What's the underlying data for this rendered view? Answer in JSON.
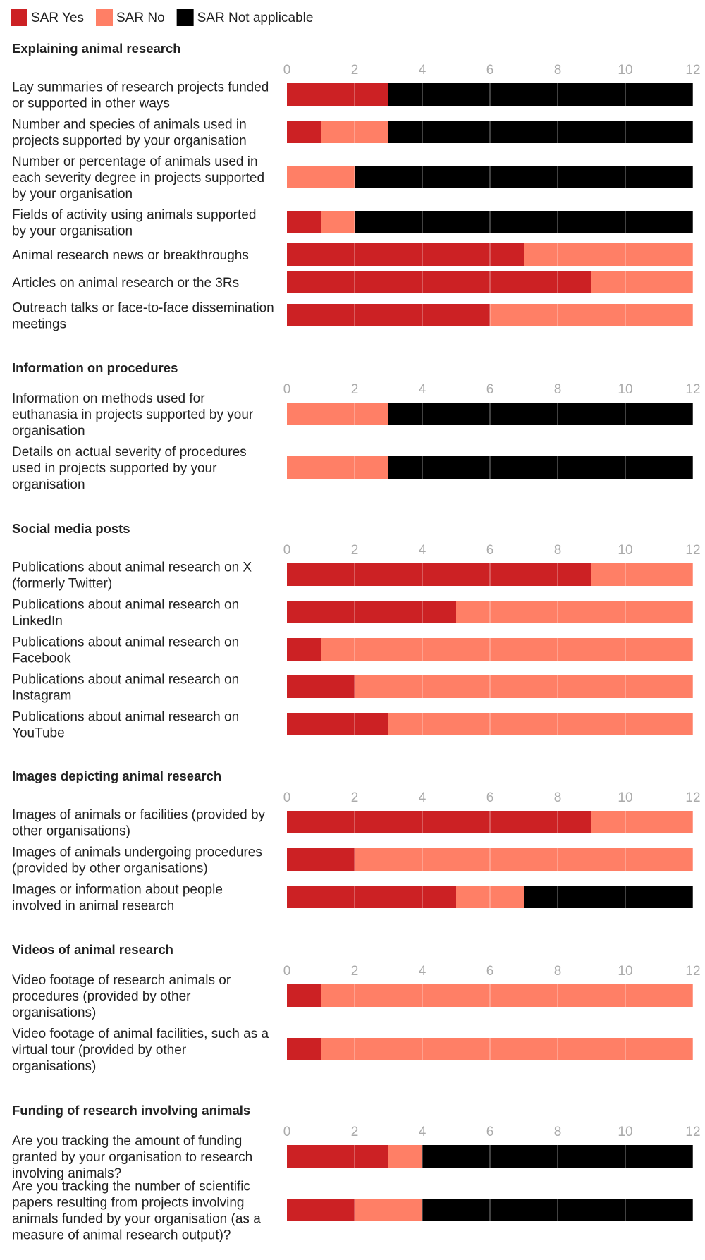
{
  "legend": [
    {
      "label": "SAR Yes",
      "color": "#cc2124"
    },
    {
      "label": "SAR No",
      "color": "#ff7f66"
    },
    {
      "label": "SAR Not applicable",
      "color": "#000000"
    }
  ],
  "chart_data": {
    "type": "bar",
    "orientation": "horizontal",
    "stacked": true,
    "xlim": [
      0,
      12
    ],
    "xticks": [
      "0",
      "2",
      "4",
      "6",
      "8",
      "10",
      "12"
    ],
    "grid": true,
    "legend_position": "top-left",
    "series_names": [
      "SAR Yes",
      "SAR No",
      "SAR Not applicable"
    ],
    "sections": [
      {
        "title": "Explaining animal research",
        "rows": [
          {
            "label": "Lay summaries of research projects funded or supported in other ways",
            "values": [
              3,
              0,
              9
            ]
          },
          {
            "label": "Number and species of animals used in projects supported by your organisation",
            "values": [
              1,
              2,
              9
            ]
          },
          {
            "label": "Number or percentage of animals used in each severity degree in projects supported by your organisation",
            "values": [
              0,
              2,
              10
            ]
          },
          {
            "label": "Fields of activity using animals supported by your organisation",
            "values": [
              1,
              1,
              10
            ]
          },
          {
            "label": "Animal research news or breakthroughs",
            "values": [
              7,
              5,
              0
            ]
          },
          {
            "label": "Articles on animal research or the 3Rs",
            "values": [
              9,
              3,
              0
            ]
          },
          {
            "label": "Outreach talks or face-to-face dissemination meetings",
            "values": [
              6,
              6,
              0
            ]
          }
        ]
      },
      {
        "title": "Information on procedures",
        "rows": [
          {
            "label": "Information on methods used for euthanasia in projects supported by your organisation",
            "values": [
              0,
              3,
              9
            ]
          },
          {
            "label": "Details on actual severity of procedures used in projects supported by your organisation",
            "values": [
              0,
              3,
              9
            ]
          }
        ]
      },
      {
        "title": "Social media posts",
        "rows": [
          {
            "label": "Publications about animal research on X (formerly Twitter)",
            "values": [
              9,
              3,
              0
            ]
          },
          {
            "label": "Publications about animal research on LinkedIn",
            "values": [
              5,
              7,
              0
            ]
          },
          {
            "label": "Publications about animal research on Facebook",
            "values": [
              1,
              11,
              0
            ]
          },
          {
            "label": "Publications about animal research on Instagram",
            "values": [
              2,
              10,
              0
            ]
          },
          {
            "label": "Publications about animal research on YouTube",
            "values": [
              3,
              9,
              0
            ]
          }
        ]
      },
      {
        "title": "Images depicting animal research",
        "rows": [
          {
            "label": "Images of animals or facilities (provided by other organisations)",
            "values": [
              9,
              3,
              0
            ]
          },
          {
            "label": "Images of animals undergoing procedures (provided by other organisations)",
            "values": [
              2,
              10,
              0
            ]
          },
          {
            "label": "Images or information about people involved in animal research",
            "values": [
              5,
              2,
              5
            ]
          }
        ]
      },
      {
        "title": "Videos of animal research",
        "rows": [
          {
            "label": "Video footage of research animals or procedures (provided by other organisations)",
            "values": [
              1,
              11,
              0
            ]
          },
          {
            "label": "Video footage of animal facilities, such as a virtual tour (provided by other organisations)",
            "values": [
              1,
              11,
              0
            ]
          }
        ]
      },
      {
        "title": "Funding of research involving animals",
        "rows": [
          {
            "label": "Are you tracking the amount of funding granted by your organisation to research involving animals?",
            "values": [
              3,
              1,
              8
            ]
          },
          {
            "label": "Are you tracking the number of scientific papers resulting from projects involving animals funded by your organisation (as a measure of animal research output)?",
            "values": [
              2,
              2,
              8
            ]
          }
        ]
      }
    ]
  }
}
